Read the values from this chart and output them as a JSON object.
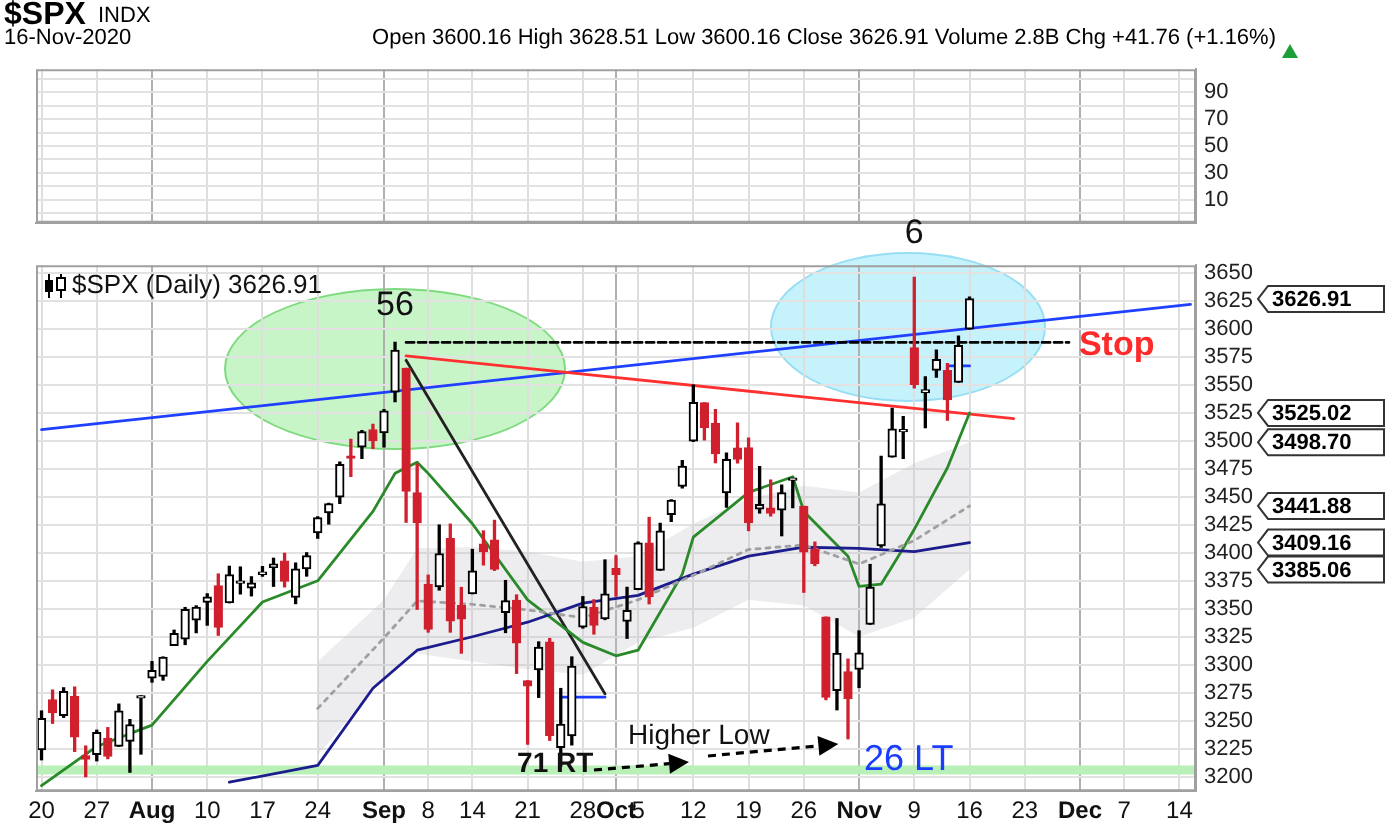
{
  "chart_data": [
    {
      "type": "line",
      "title": "$SPX",
      "subtitle": "16-Nov-2020",
      "annotations": [
        "INDX",
        "Open 3600.16  High 3628.51  Low 3600.16  Close 3626.91  Volume 2.8B  Chg +41.76 (+1.16%)"
      ],
      "categories": [
        null,
        null,
        null,
        null,
        null,
        null,
        null,
        null,
        null,
        null,
        null,
        null,
        null,
        null,
        null,
        null,
        null,
        null,
        null,
        null,
        null,
        null,
        null,
        null,
        null,
        null,
        null,
        null,
        null,
        null,
        null,
        null,
        null,
        null,
        null,
        null,
        null,
        null,
        null,
        null,
        null,
        null,
        null,
        null,
        null,
        null,
        null,
        null,
        null,
        null,
        null,
        null,
        null,
        null,
        null,
        null,
        null,
        null,
        null,
        null,
        null,
        null,
        null,
        null,
        null,
        null,
        null,
        null,
        null,
        null,
        null,
        null,
        null,
        null,
        null,
        null,
        null,
        null,
        null,
        null,
        null,
        null,
        null,
        null,
        null,
        null,
        null,
        null,
        null,
        null,
        null,
        null,
        null,
        null,
        null,
        null,
        null,
        null,
        null,
        null,
        null,
        null,
        null,
        null,
        null
      ],
      "ylim": [
        -7,
        107
      ],
      "yticks": [
        {
          "value": 0,
          "label": null
        },
        10,
        {
          "value": 20,
          "label": null
        },
        30,
        {
          "value": 40,
          "label": null
        },
        50,
        {
          "value": 60,
          "label": null
        },
        70,
        {
          "value": 80,
          "label": null
        },
        90,
        {
          "value": 100,
          "label": null
        }
      ],
      "grid": true,
      "tick_labels": "y"
    },
    {
      "type": "candlestick",
      "categories": [
        "20",
        null,
        null,
        null,
        null,
        "27",
        null,
        null,
        null,
        null,
        "Aug",
        null,
        null,
        null,
        null,
        "10",
        null,
        null,
        null,
        null,
        "17",
        null,
        null,
        null,
        null,
        "24",
        null,
        null,
        null,
        null,
        null,
        "Sep",
        null,
        null,
        null,
        "8",
        null,
        null,
        null,
        "14",
        null,
        null,
        null,
        null,
        "21",
        null,
        null,
        null,
        null,
        "28",
        null,
        null,
        "Oct",
        null,
        "5",
        null,
        null,
        null,
        null,
        "12",
        null,
        null,
        null,
        null,
        "19",
        null,
        null,
        null,
        null,
        "26",
        null,
        null,
        null,
        null,
        "Nov",
        null,
        null,
        null,
        null,
        "9",
        null,
        null,
        null,
        null,
        "16",
        null,
        null,
        null,
        null,
        "23",
        null,
        null,
        null,
        null,
        "Dec",
        null,
        null,
        null,
        "7",
        null,
        null,
        null,
        null,
        "14",
        null
      ],
      "ohlc": [
        [
          3224.29,
          3258.61,
          3215.16,
          3251.84
        ],
        [
          3268.52,
          3277.29,
          3247.77,
          3257.3
        ],
        [
          3254.86,
          3279.32,
          3253.1,
          3276.02
        ],
        [
          3271.64,
          3279.99,
          3222.66,
          3235.66
        ],
        [
          3218.58,
          3227.26,
          3200.05,
          3215.63
        ],
        [
          3219.84,
          3241.43,
          3214.25,
          3239.41
        ],
        [
          3234.27,
          3243.72,
          3216.17,
          3218.44
        ],
        [
          3227.22,
          3264.74,
          3227.22,
          3258.44
        ],
        [
          3231.76,
          3250.92,
          3204.13,
          3246.22
        ],
        [
          3270.45,
          3272.17,
          3220.26,
          3271.12
        ],
        [
          3288.26,
          3302.73,
          3284.53,
          3294.61
        ],
        [
          3289.92,
          3306.84,
          3286.37,
          3306.51
        ],
        [
          3317.37,
          3330.77,
          3317.37,
          3327.77
        ],
        [
          3323.17,
          3351.03,
          3318.14,
          3349.16
        ],
        [
          3340.05,
          3352.54,
          3328.72,
          3351.28
        ],
        [
          3356.04,
          3363.29,
          3335.44,
          3360.47
        ],
        [
          3370.34,
          3381.01,
          3326.44,
          3333.69
        ],
        [
          3355.46,
          3387.89,
          3355.46,
          3380.35
        ],
        [
          3372.95,
          3387.24,
          3363.35,
          3373.43
        ],
        [
          3368.66,
          3378.51,
          3361.64,
          3372.85
        ],
        [
          3380.86,
          3387.59,
          3379.22,
          3381.99
        ],
        [
          3387.04,
          3395.06,
          3370.15,
          3389.78
        ],
        [
          3392.51,
          3399.54,
          3369.66,
          3374.85
        ],
        [
          3360.48,
          3390.8,
          3354.69,
          3385.51
        ],
        [
          3386.01,
          3399.96,
          3379.31,
          3397.16
        ],
        [
          3418.09,
          3432.09,
          3413.13,
          3431.28
        ],
        [
          3435.95,
          3444.21,
          3425.84,
          3443.62
        ],
        [
          3449.97,
          3481.07,
          3444.15,
          3478.73
        ],
        [
          3485.14,
          3501.38,
          3468.35,
          3484.55
        ],
        [
          3494.69,
          3509.23,
          3484.32,
          3508.01
        ],
        [
          3509.73,
          3514.77,
          3493.25,
          3500.31
        ],
        [
          3507.44,
          3528.03,
          3494.6,
          3526.65
        ],
        [
          3543.76,
          3588.11,
          3535.23,
          3580.84
        ],
        [
          3564.74,
          3564.85,
          3427.41,
          3455.06
        ],
        [
          3453.6,
          3479.15,
          3349.63,
          3426.96
        ],
        [
          3371.88,
          3379.97,
          3329.27,
          3331.84
        ],
        [
          3369.82,
          3424.77,
          3366.84,
          3398.96
        ],
        [
          3412.56,
          3425.55,
          3329.25,
          3339.19
        ],
        [
          3352.7,
          3368.95,
          3310.47,
          3340.97
        ],
        [
          3363.56,
          3402.93,
          3363.56,
          3383.54
        ],
        [
          3407.73,
          3419.48,
          3389.25,
          3401.2
        ],
        [
          3411.23,
          3428.92,
          3384.45,
          3385.49
        ],
        [
          3346.86,
          3375.17,
          3328.82,
          3357.01
        ],
        [
          3357.38,
          3362.27,
          3292.4,
          3319.47
        ],
        [
          3285.57,
          3285.57,
          3229.1,
          3281.06
        ],
        [
          3295.75,
          3320.31,
          3270.95,
          3315.57
        ],
        [
          3320.11,
          3323.35,
          3232.57,
          3236.92
        ],
        [
          3226.14,
          3278.7,
          3209.45,
          3246.59
        ],
        [
          3236.66,
          3306.88,
          3228.44,
          3298.46
        ],
        [
          3333.9,
          3360.74,
          3332.91,
          3351.6
        ],
        [
          3350.92,
          3357.92,
          3327.54,
          3335.47
        ],
        [
          3341.21,
          3393.56,
          3340.47,
          3363
        ],
        [
          3385.87,
          3397.18,
          3361.39,
          3380.8
        ],
        [
          3338.94,
          3369.1,
          3323.69,
          3348.42
        ],
        [
          3367.27,
          3409.57,
          3367.27,
          3408.6
        ],
        [
          3408.74,
          3431.56,
          3354.54,
          3360.97
        ],
        [
          3384.56,
          3426.26,
          3384.56,
          3419.44
        ],
        [
          3434.28,
          3447.28,
          3428.15,
          3446.83
        ],
        [
          3459.67,
          3482.34,
          3458.07,
          3477.14
        ],
        [
          3500.02,
          3549.85,
          3499.61,
          3534.22
        ],
        [
          3534.01,
          3534.01,
          3500.86,
          3511.93
        ],
        [
          3515.47,
          3527.94,
          3480.55,
          3488.67
        ],
        [
          3453.72,
          3489.08,
          3440.89,
          3483.34
        ],
        [
          3493.5,
          3515.76,
          3480.45,
          3483.81
        ],
        [
          3493.66,
          3502.42,
          3419.93,
          3426.92
        ],
        [
          3439.38,
          3476.93,
          3435.65,
          3443.12
        ],
        [
          3439.91,
          3464.86,
          3433.06,
          3435.56
        ],
        [
          3438.5,
          3460.53,
          3415.34,
          3453.49
        ],
        [
          3464.9,
          3466.46,
          3440.45,
          3465.39
        ],
        [
          3441.42,
          3441.42,
          3364.86,
          3400.97
        ],
        [
          3403.15,
          3409.51,
          3388.71,
          3390.68
        ],
        [
          3342.48,
          3342.48,
          3268.89,
          3271.03
        ],
        [
          3277.17,
          3341.05,
          3259.82,
          3310.11
        ],
        [
          3293.59,
          3304.93,
          3233.94,
          3269.96
        ],
        [
          3296.2,
          3330.14,
          3279.74,
          3310.24
        ],
        [
          3336.25,
          3389.49,
          3336.25,
          3369.16
        ],
        [
          3406.46,
          3486.25,
          3405.17,
          3443.44
        ],
        [
          3485.74,
          3529.05,
          3485.74,
          3510.45
        ],
        [
          3508.34,
          3521.58,
          3484.34,
          3509.44
        ],
        [
          3583.04,
          3645.99,
          3547.48,
          3550.5
        ],
        [
          3543.26,
          3557.22,
          3511.91,
          3545.53
        ],
        [
          3563.22,
          3581.16,
          3557,
          3572.66
        ],
        [
          3562.67,
          3569.02,
          3518.58,
          3537.01
        ],
        [
          3552.57,
          3593.66,
          3552.57,
          3585.15
        ],
        [
          3600.16,
          3628.51,
          3600.16,
          3626.91
        ],
        null,
        null,
        null,
        null,
        null,
        null,
        null,
        null,
        null,
        null,
        null,
        null,
        null,
        null,
        null,
        null,
        null,
        null,
        null,
        null
      ],
      "colors": [
        "#000000",
        "#d0202e",
        "#000000",
        "#d0202e",
        "#d0202e",
        "#000000",
        "#d0202e",
        "#000000",
        "#000000",
        "#000000",
        "#000000",
        "#000000",
        "#000000",
        "#000000",
        "#000000",
        "#000000",
        "#d0202e",
        "#000000",
        "#000000",
        "#000000",
        "#000000",
        "#000000",
        "#d0202e",
        "#000000",
        "#000000",
        "#000000",
        "#000000",
        "#000000",
        "#d0202e",
        "#000000",
        "#d0202e",
        "#000000",
        "#000000",
        "#d0202e",
        "#d0202e",
        "#d0202e",
        "#000000",
        "#d0202e",
        "#d0202e",
        "#000000",
        "#d0202e",
        "#d0202e",
        "#000000",
        "#d0202e",
        "#d0202e",
        "#000000",
        "#d0202e",
        "#000000",
        "#000000",
        "#000000",
        "#d0202e",
        "#000000",
        "#d0202e",
        "#000000",
        "#000000",
        "#d0202e",
        "#000000",
        "#000000",
        "#000000",
        "#000000",
        "#d0202e",
        "#d0202e",
        "#000000",
        "#d0202e",
        "#d0202e",
        "#000000",
        "#d0202e",
        "#000000",
        "#000000",
        "#d0202e",
        "#d0202e",
        "#d0202e",
        "#000000",
        "#d0202e",
        "#000000",
        "#000000",
        "#000000",
        "#000000",
        "#000000",
        "#d0202e",
        "#000000",
        "#000000",
        "#d0202e",
        "#000000",
        "#000000",
        null,
        null,
        null,
        null,
        null,
        null,
        null,
        null,
        null,
        null,
        null,
        null,
        null,
        null,
        null,
        null,
        null,
        null,
        null,
        null
      ],
      "series": [
        {
          "type": "line",
          "color": "#a0a0a0",
          "line_style": "dotted",
          "values": [
            null,
            null,
            null,
            null,
            null,
            null,
            null,
            null,
            null,
            null,
            null,
            null,
            null,
            null,
            null,
            null,
            null,
            null,
            null,
            null,
            null,
            null,
            null,
            null,
            null,
            3261,
            null,
            null,
            null,
            null,
            null,
            3324,
            null,
            null,
            3357,
            null,
            null,
            null,
            null,
            3354,
            null,
            null,
            null,
            null,
            3349,
            null,
            null,
            null,
            null,
            3342,
            null,
            null,
            null,
            null,
            3358,
            null,
            null,
            null,
            null,
            3380,
            null,
            null,
            null,
            null,
            3403,
            null,
            null,
            null,
            null,
            3407,
            null,
            null,
            null,
            null,
            3390,
            null,
            null,
            null,
            null,
            3411,
            null,
            null,
            null,
            null,
            3441.88,
            null,
            null,
            null,
            null,
            null,
            null,
            null,
            null,
            null,
            null,
            null,
            null,
            null,
            null,
            null,
            null,
            null,
            null,
            null,
            null
          ],
          "upper": [
            null,
            null,
            null,
            null,
            null,
            null,
            null,
            null,
            null,
            null,
            null,
            null,
            null,
            null,
            null,
            null,
            null,
            null,
            null,
            null,
            null,
            null,
            null,
            null,
            null,
            3303,
            null,
            null,
            null,
            null,
            null,
            3358,
            null,
            null,
            3404,
            null,
            null,
            null,
            null,
            3405,
            null,
            null,
            null,
            null,
            3401,
            null,
            null,
            null,
            null,
            3392,
            null,
            null,
            null,
            null,
            3397,
            null,
            null,
            null,
            null,
            3426,
            null,
            null,
            null,
            null,
            3448,
            null,
            null,
            null,
            null,
            3460,
            null,
            null,
            null,
            null,
            3454,
            null,
            null,
            null,
            null,
            3480,
            null,
            null,
            null,
            null,
            3498.7,
            null,
            null,
            null,
            null,
            null,
            null,
            null,
            null,
            null,
            null,
            null,
            null,
            null,
            null,
            null,
            null,
            null,
            null,
            null,
            null
          ],
          "lower": [
            null,
            null,
            null,
            null,
            null,
            null,
            null,
            null,
            null,
            null,
            null,
            null,
            null,
            null,
            null,
            null,
            null,
            null,
            null,
            null,
            null,
            null,
            null,
            null,
            null,
            3219,
            null,
            null,
            null,
            null,
            null,
            3290,
            null,
            null,
            3310,
            null,
            null,
            null,
            null,
            3303,
            null,
            null,
            null,
            null,
            3296,
            null,
            null,
            null,
            null,
            3291,
            null,
            null,
            null,
            null,
            3320,
            null,
            null,
            null,
            null,
            3333,
            null,
            null,
            null,
            null,
            3358,
            null,
            null,
            null,
            null,
            3353,
            null,
            null,
            null,
            null,
            3325,
            null,
            null,
            null,
            null,
            3342,
            null,
            null,
            null,
            null,
            3385.06,
            null,
            null,
            null,
            null,
            null,
            null,
            null,
            null,
            null,
            null,
            null,
            null,
            null,
            null,
            null,
            null,
            null,
            null,
            null,
            null
          ]
        },
        {
          "type": "line",
          "color": "#1c1c8c",
          "values": [
            null,
            null,
            null,
            null,
            null,
            null,
            null,
            null,
            null,
            null,
            null,
            null,
            null,
            null,
            null,
            null,
            null,
            3195,
            null,
            null,
            null,
            null,
            null,
            null,
            null,
            3210,
            null,
            null,
            null,
            null,
            3279,
            null,
            null,
            null,
            3313,
            null,
            null,
            null,
            null,
            3325,
            null,
            null,
            null,
            null,
            3338,
            null,
            null,
            null,
            null,
            3355,
            null,
            null,
            null,
            null,
            3362,
            null,
            null,
            null,
            null,
            3381,
            null,
            null,
            null,
            null,
            3397,
            null,
            null,
            null,
            null,
            3405,
            null,
            null,
            null,
            null,
            3404,
            null,
            null,
            null,
            null,
            3401,
            null,
            null,
            null,
            null,
            3409.16,
            null,
            null,
            null,
            null,
            null,
            null,
            null,
            null,
            null,
            null,
            null,
            null,
            null,
            null,
            null,
            null,
            null,
            null,
            null,
            null
          ]
        },
        {
          "type": "line",
          "color": "#2a8a2a",
          "values": [
            3192,
            null,
            null,
            null,
            null,
            3227,
            null,
            null,
            null,
            null,
            3246,
            null,
            null,
            null,
            null,
            3303,
            null,
            null,
            null,
            null,
            3356,
            null,
            null,
            null,
            null,
            3375,
            null,
            null,
            null,
            null,
            3437,
            null,
            3471,
            null,
            3481,
            3471,
            null,
            null,
            null,
            3426,
            null,
            null,
            null,
            null,
            3358,
            null,
            null,
            null,
            null,
            3320,
            null,
            null,
            3308,
            null,
            3313,
            null,
            null,
            null,
            3381,
            3414,
            null,
            null,
            null,
            null,
            3454,
            null,
            null,
            null,
            3468,
            3437,
            null,
            null,
            null,
            3397,
            3370,
            null,
            3372,
            null,
            3404,
            3421,
            null,
            null,
            3476,
            null,
            3525.02,
            null,
            null,
            null,
            null,
            null,
            null,
            null,
            null,
            null,
            null,
            null,
            null,
            null,
            null,
            null,
            null,
            null,
            null,
            null,
            null
          ]
        },
        {
          "type": "line",
          "color": "#ff3030",
          "values": [
            null,
            null,
            null,
            null,
            null,
            null,
            null,
            null,
            null,
            null,
            null,
            null,
            null,
            null,
            null,
            null,
            null,
            null,
            null,
            null,
            null,
            null,
            null,
            null,
            null,
            null,
            null,
            null,
            null,
            null,
            null,
            null,
            null,
            3576,
            null,
            null,
            null,
            null,
            null,
            null,
            null,
            null,
            null,
            null,
            null,
            null,
            null,
            null,
            null,
            null,
            null,
            null,
            null,
            null,
            null,
            null,
            null,
            null,
            null,
            null,
            null,
            null,
            null,
            null,
            null,
            null,
            null,
            null,
            null,
            null,
            null,
            null,
            null,
            null,
            null,
            null,
            null,
            null,
            null,
            null,
            null,
            null,
            null,
            null,
            null,
            null,
            null,
            null,
            3520,
            null,
            null,
            null,
            null,
            null,
            null,
            null,
            null,
            null,
            null,
            null,
            null,
            null,
            null,
            null,
            null
          ]
        },
        {
          "type": "line",
          "color": "#222222",
          "values": [
            null,
            null,
            null,
            null,
            null,
            null,
            null,
            null,
            null,
            null,
            null,
            null,
            null,
            null,
            null,
            null,
            null,
            null,
            null,
            null,
            null,
            null,
            null,
            null,
            null,
            null,
            null,
            null,
            null,
            null,
            null,
            null,
            null,
            3572,
            null,
            null,
            null,
            null,
            null,
            null,
            null,
            null,
            null,
            null,
            null,
            null,
            null,
            null,
            null,
            null,
            null,
            3274,
            null,
            null,
            null,
            null,
            null,
            null,
            null,
            null,
            null,
            null,
            null,
            null,
            null,
            null,
            null,
            null,
            null,
            null,
            null,
            null,
            null,
            null,
            null,
            null,
            null,
            null,
            null,
            null,
            null,
            null,
            null,
            null,
            null,
            null,
            null,
            null,
            null,
            null,
            null,
            null,
            null,
            null,
            null,
            null,
            null,
            null,
            null,
            null,
            null,
            null,
            null,
            null,
            null
          ]
        },
        {
          "type": "line",
          "color": "#000000",
          "line_style": "dashed",
          "values": [
            null,
            null,
            null,
            null,
            null,
            null,
            null,
            null,
            null,
            null,
            null,
            null,
            null,
            null,
            null,
            null,
            null,
            null,
            null,
            null,
            null,
            null,
            null,
            null,
            null,
            null,
            null,
            null,
            null,
            null,
            null,
            null,
            null,
            3588,
            null,
            null,
            null,
            null,
            null,
            null,
            null,
            null,
            null,
            null,
            null,
            null,
            null,
            null,
            null,
            null,
            null,
            null,
            null,
            null,
            null,
            null,
            null,
            null,
            null,
            null,
            null,
            null,
            null,
            null,
            null,
            null,
            null,
            null,
            null,
            null,
            null,
            null,
            null,
            null,
            null,
            null,
            null,
            null,
            null,
            null,
            null,
            null,
            null,
            null,
            null,
            null,
            null,
            null,
            null,
            null,
            null,
            null,
            null,
            3588,
            null,
            null,
            null,
            null,
            null,
            null,
            null,
            null,
            null,
            null,
            null
          ]
        },
        {
          "type": "line",
          "color": "#2040ff",
          "values": [
            3510,
            null,
            null,
            null,
            null,
            null,
            null,
            null,
            null,
            null,
            null,
            null,
            null,
            null,
            null,
            null,
            null,
            null,
            null,
            null,
            null,
            null,
            null,
            null,
            null,
            null,
            null,
            null,
            null,
            null,
            null,
            null,
            null,
            null,
            null,
            null,
            null,
            null,
            null,
            null,
            null,
            null,
            null,
            null,
            null,
            null,
            null,
            null,
            null,
            null,
            null,
            null,
            null,
            null,
            null,
            null,
            null,
            null,
            null,
            null,
            null,
            null,
            null,
            null,
            null,
            null,
            null,
            null,
            null,
            null,
            null,
            null,
            null,
            null,
            null,
            null,
            null,
            null,
            null,
            null,
            null,
            null,
            null,
            null,
            null,
            null,
            null,
            null,
            null,
            null,
            null,
            null,
            null,
            null,
            null,
            null,
            null,
            null,
            null,
            null,
            null,
            null,
            null,
            null,
            3622
          ]
        },
        {
          "type": "line",
          "color": "#1a3cff",
          "values": [
            null,
            null,
            null,
            null,
            null,
            null,
            null,
            null,
            null,
            null,
            null,
            null,
            null,
            null,
            null,
            null,
            null,
            null,
            null,
            null,
            null,
            null,
            null,
            null,
            null,
            null,
            null,
            null,
            null,
            null,
            null,
            null,
            null,
            null,
            null,
            null,
            null,
            null,
            null,
            null,
            null,
            null,
            null,
            null,
            null,
            null,
            null,
            3271,
            3271,
            3271,
            3271,
            3271,
            null,
            null,
            null,
            null,
            null,
            null,
            null,
            null,
            null,
            null,
            null,
            null,
            null,
            null,
            null,
            null,
            null,
            null,
            null,
            null,
            null,
            null,
            null,
            null,
            null,
            null,
            null,
            null,
            null,
            null,
            null,
            null,
            null,
            null,
            null,
            null,
            null,
            null,
            null,
            null,
            null,
            null,
            null,
            null,
            null,
            null,
            null,
            null,
            null,
            null,
            null,
            null,
            null
          ]
        },
        {
          "type": "line",
          "color": "#1a3cff",
          "values": [
            null,
            null,
            null,
            null,
            null,
            null,
            null,
            null,
            null,
            null,
            null,
            null,
            null,
            null,
            null,
            null,
            null,
            null,
            null,
            null,
            null,
            null,
            null,
            null,
            null,
            null,
            null,
            null,
            null,
            null,
            null,
            null,
            null,
            null,
            null,
            null,
            null,
            null,
            null,
            null,
            null,
            null,
            null,
            null,
            null,
            null,
            null,
            null,
            null,
            null,
            null,
            null,
            null,
            null,
            null,
            null,
            null,
            null,
            null,
            null,
            null,
            null,
            null,
            null,
            null,
            null,
            null,
            null,
            null,
            null,
            null,
            null,
            null,
            null,
            null,
            null,
            null,
            null,
            null,
            null,
            null,
            null,
            3567,
            3567,
            3567,
            null,
            null,
            null,
            null,
            null,
            null,
            null,
            null,
            null,
            null,
            null,
            null,
            null,
            null,
            null,
            null,
            null,
            null,
            null,
            null
          ]
        }
      ],
      "bands": [
        {
          "axis": "y",
          "from": 3202,
          "to": 3210,
          "color": "#b8f0b8"
        }
      ],
      "annotations": [
        "$SPX (Daily) 3626.91",
        "56",
        "6",
        "Stop",
        "Higher Low",
        "71 RT",
        "26 LT",
        "3626.91",
        "3525.02",
        "3498.70",
        "3441.88",
        "3409.16",
        "3385.06"
      ],
      "ylim": [
        3187,
        3657
      ],
      "yticks": [
        3200,
        3225,
        3250,
        3275,
        3300,
        3325,
        3350,
        3375,
        3400,
        3425,
        3450,
        3475,
        3500,
        3525,
        3550,
        3575,
        3600,
        3625,
        3650
      ],
      "grid": true
    }
  ]
}
